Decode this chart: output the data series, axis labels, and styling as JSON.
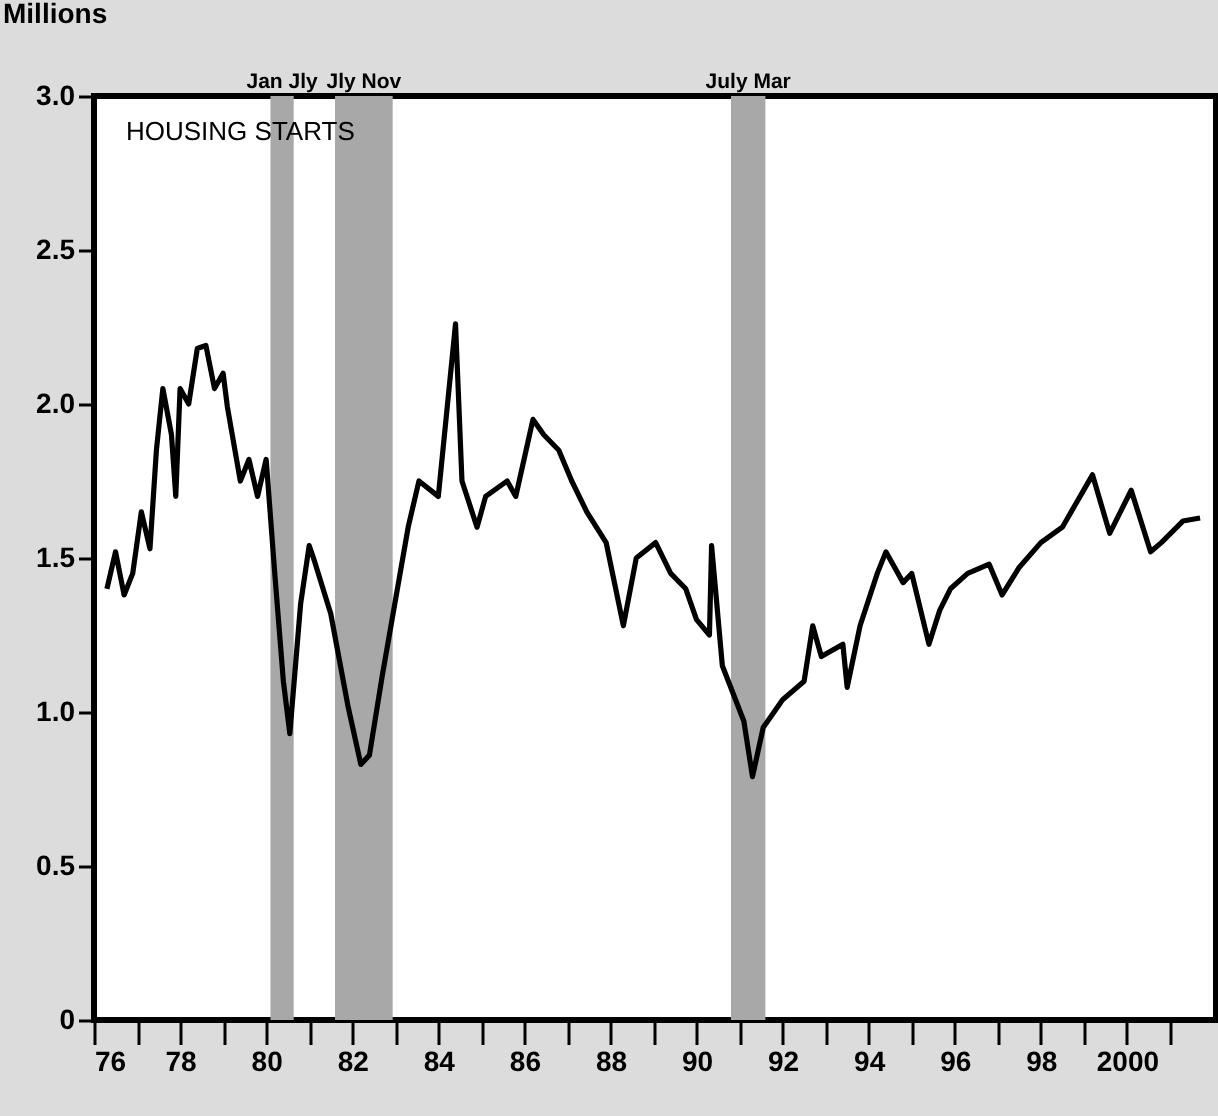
{
  "chart_data": {
    "type": "line",
    "title": "HOUSING STARTS",
    "ylabel": "Millions",
    "x": [
      1976.3,
      1976.5,
      1976.7,
      1976.9,
      1977.1,
      1977.3,
      1977.45,
      1977.6,
      1977.8,
      1977.9,
      1978.0,
      1978.2,
      1978.4,
      1978.6,
      1978.8,
      1979.0,
      1979.1,
      1979.4,
      1979.6,
      1979.8,
      1980.0,
      1980.2,
      1980.4,
      1980.55,
      1980.8,
      1981.0,
      1981.1,
      1981.5,
      1981.9,
      1982.2,
      1982.4,
      1982.7,
      1983.0,
      1983.3,
      1983.55,
      1984.0,
      1984.4,
      1984.55,
      1984.9,
      1985.1,
      1985.6,
      1985.8,
      1986.2,
      1986.45,
      1986.8,
      1987.1,
      1987.45,
      1987.9,
      1988.3,
      1988.6,
      1989.05,
      1989.4,
      1989.75,
      1990.0,
      1990.3,
      1990.35,
      1990.6,
      1991.1,
      1991.3,
      1991.55,
      1992.0,
      1992.5,
      1992.7,
      1992.9,
      1993.4,
      1993.5,
      1993.8,
      1994.2,
      1994.4,
      1994.8,
      1995.0,
      1995.4,
      1995.65,
      1995.9,
      1996.3,
      1996.8,
      1997.1,
      1997.5,
      1998.0,
      1998.5,
      1999.2,
      1999.6,
      2000.1,
      2000.55,
      2000.8,
      2001.3,
      2001.7
    ],
    "series": [
      {
        "color": "#000000",
        "values": [
          1.4,
          1.52,
          1.38,
          1.45,
          1.65,
          1.53,
          1.85,
          2.05,
          1.9,
          1.7,
          2.05,
          2.0,
          2.18,
          2.19,
          2.05,
          2.1,
          1.99,
          1.75,
          1.82,
          1.7,
          1.82,
          1.45,
          1.1,
          0.93,
          1.35,
          1.54,
          1.5,
          1.32,
          1.02,
          0.83,
          0.86,
          1.12,
          1.36,
          1.6,
          1.75,
          1.7,
          2.26,
          1.75,
          1.6,
          1.7,
          1.75,
          1.7,
          1.95,
          1.9,
          1.85,
          1.75,
          1.65,
          1.55,
          1.28,
          1.5,
          1.55,
          1.45,
          1.4,
          1.3,
          1.25,
          1.54,
          1.15,
          0.97,
          0.79,
          0.95,
          1.04,
          1.1,
          1.28,
          1.18,
          1.22,
          1.08,
          1.28,
          1.45,
          1.52,
          1.42,
          1.45,
          1.22,
          1.33,
          1.4,
          1.45,
          1.48,
          1.38,
          1.47,
          1.55,
          1.6,
          1.77,
          1.58,
          1.72,
          1.52,
          1.55,
          1.62,
          1.63
        ]
      }
    ],
    "xlim": [
      1976,
      2002.07
    ],
    "ylim": [
      0,
      3
    ],
    "yticks": [
      0,
      0.5,
      {
        "value": 1,
        "label": "1.0"
      },
      1.5,
      {
        "value": 2,
        "label": "2.0"
      },
      2.5,
      {
        "value": 3,
        "label": "3.0"
      }
    ],
    "xticks": [
      {
        "value": 1976,
        "label": "76"
      },
      {
        "value": 1977,
        "label": null
      },
      {
        "value": 1978,
        "label": "78"
      },
      {
        "value": 1979,
        "label": null
      },
      {
        "value": 1980,
        "label": "80"
      },
      {
        "value": 1981,
        "label": null
      },
      {
        "value": 1982,
        "label": "82"
      },
      {
        "value": 1983,
        "label": null
      },
      {
        "value": 1984,
        "label": "84"
      },
      {
        "value": 1985,
        "label": null
      },
      {
        "value": 1986,
        "label": "86"
      },
      {
        "value": 1987,
        "label": null
      },
      {
        "value": 1988,
        "label": "88"
      },
      {
        "value": 1989,
        "label": null
      },
      {
        "value": 1990,
        "label": "90"
      },
      {
        "value": 1991,
        "label": null
      },
      {
        "value": 1992,
        "label": "92"
      },
      {
        "value": 1993,
        "label": null
      },
      {
        "value": 1994,
        "label": "94"
      },
      {
        "value": 1995,
        "label": null
      },
      {
        "value": 1996,
        "label": "96"
      },
      {
        "value": 1997,
        "label": null
      },
      {
        "value": 1998,
        "label": "98"
      },
      {
        "value": 1999,
        "label": null
      },
      {
        "value": 2000,
        "label": "2000"
      },
      {
        "value": 2001,
        "label": null
      }
    ],
    "bands": [
      {
        "axis": "x",
        "from": 1980.1,
        "to": 1980.64,
        "label": "Jan Jly",
        "color": "#a8a8a8"
      },
      {
        "axis": "x",
        "from": 1981.6,
        "to": 1982.94,
        "label": "Jly Nov",
        "color": "#a8a8a8"
      },
      {
        "axis": "x",
        "from": 1990.8,
        "to": 1991.6,
        "label": "July Mar",
        "color": "#a8a8a8"
      }
    ],
    "grid": false,
    "line_style": "solid",
    "marker": "none"
  }
}
